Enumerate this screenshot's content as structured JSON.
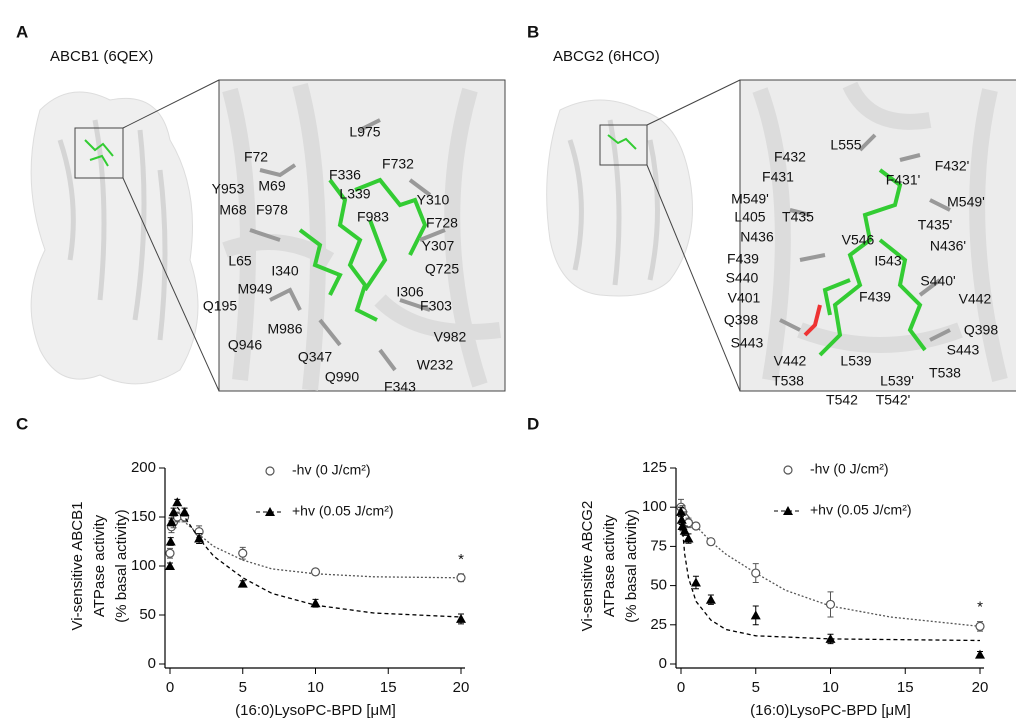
{
  "panels": {
    "A": {
      "letter": "A",
      "title": "ABCB1 (6QEX)",
      "residues": [
        "L975",
        "F72",
        "F732",
        "F336",
        "Y953",
        "M69",
        "Y310",
        "L339",
        "M68",
        "F978",
        "F983",
        "F728",
        "Y307",
        "L65",
        "I340",
        "Q725",
        "M949",
        "I306",
        "F303",
        "Q195",
        "M986",
        "V982",
        "Q946",
        "Q347",
        "W232",
        "Q990",
        "F343"
      ]
    },
    "B": {
      "letter": "B",
      "title": "ABCG2 (6HCO)",
      "residues": [
        "F432",
        "L555",
        "F431",
        "F431'",
        "F432'",
        "M549'",
        "M549'",
        "L405",
        "T435",
        "T435'",
        "N436",
        "V546",
        "N436'",
        "F439",
        "I543",
        "S440",
        "S440'",
        "V401",
        "F439",
        "V442",
        "Q398",
        "Q398",
        "S443",
        "S443",
        "V442",
        "L539",
        "T538",
        "L539'",
        "T538",
        "T542",
        "T542'"
      ]
    }
  },
  "chart_data": [
    {
      "type": "scatter",
      "letter": "C",
      "ylabel": [
        "Vi-sensitive ABCB1",
        "ATPase activity",
        "(% basal activity)"
      ],
      "xlabel": "(16:0)LysoPC-BPD [μM]",
      "xlim": [
        0,
        20
      ],
      "xticks": [
        0,
        5,
        10,
        15,
        20
      ],
      "ylim": [
        0,
        200
      ],
      "yticks": [
        0,
        50,
        100,
        150,
        200
      ],
      "annotation": "*",
      "series": [
        {
          "name": "-hv  (0 J/cm²)",
          "marker": "circle-open",
          "color": "#555555",
          "x": [
            0,
            0.1,
            0.25,
            0.5,
            1,
            2,
            5,
            10,
            20
          ],
          "values": [
            113,
            140,
            145,
            150,
            150,
            135,
            113,
            94,
            88
          ],
          "errors": [
            5,
            6,
            6,
            5,
            5,
            6,
            6,
            3,
            4
          ],
          "fit": {
            "x": [
              0.5,
              1,
              2,
              3,
              5,
              7,
              10,
              14,
              20
            ],
            "values": [
              152,
              145,
              132,
              120,
              106,
              97,
              92,
              89,
              88
            ]
          }
        },
        {
          "name": "+hv (0.05 J/cm²)",
          "marker": "triangle",
          "color": "#000000",
          "x": [
            0,
            0.05,
            0.1,
            0.25,
            0.5,
            1,
            2,
            5,
            10,
            20
          ],
          "values": [
            100,
            125,
            145,
            155,
            165,
            155,
            128,
            82,
            62,
            46
          ],
          "errors": [
            3,
            4,
            4,
            4,
            3,
            4,
            5,
            3,
            4,
            5
          ],
          "fit": {
            "x": [
              0.5,
              1,
              2,
              3,
              5,
              7,
              10,
              14,
              20
            ],
            "values": [
              160,
              150,
              128,
              110,
              88,
              72,
              60,
              52,
              48
            ]
          }
        }
      ]
    },
    {
      "type": "scatter",
      "letter": "D",
      "ylabel": [
        "Vi-sensitive ABCG2",
        "ATPase activity",
        "(% basal activity)"
      ],
      "xlabel": "(16:0)LysoPC-BPD [μM]",
      "xlim": [
        0,
        20
      ],
      "xticks": [
        0,
        5,
        10,
        15,
        20
      ],
      "ylim": [
        0,
        125
      ],
      "yticks": [
        0,
        25,
        50,
        75,
        100,
        125
      ],
      "annotation": "*",
      "series": [
        {
          "name": "-hv  (0 J/cm²)",
          "marker": "circle-open",
          "color": "#555555",
          "x": [
            0,
            0.1,
            0.25,
            0.5,
            1,
            2,
            5,
            10,
            20
          ],
          "values": [
            100,
            97,
            93,
            90,
            88,
            78,
            58,
            38,
            24
          ],
          "errors": [
            5,
            4,
            4,
            3,
            2,
            2,
            6,
            8,
            3
          ],
          "fit": {
            "x": [
              0,
              1,
              2,
              3,
              5,
              7,
              10,
              14,
              20
            ],
            "values": [
              100,
              88,
              78,
              70,
              58,
              47,
              37,
              30,
              24
            ]
          }
        },
        {
          "name": "+hv (0.05 J/cm²)",
          "marker": "triangle",
          "color": "#000000",
          "x": [
            0,
            0.05,
            0.1,
            0.25,
            0.5,
            1,
            2,
            5,
            10,
            20
          ],
          "values": [
            97,
            92,
            88,
            85,
            80,
            52,
            41,
            31,
            16,
            6
          ],
          "errors": [
            3,
            3,
            3,
            3,
            3,
            4,
            3,
            6,
            3,
            2
          ],
          "fit": {
            "x": [
              0,
              0.25,
              0.5,
              1,
              2,
              3,
              5,
              10,
              20
            ],
            "values": [
              97,
              70,
              55,
              40,
              28,
              22,
              18,
              16,
              15
            ]
          }
        }
      ]
    }
  ]
}
